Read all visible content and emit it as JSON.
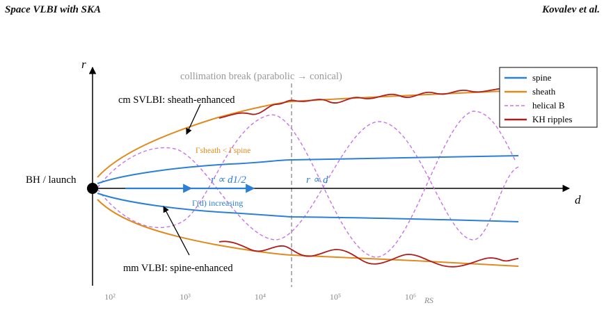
{
  "header": {
    "left": "Space VLBI with SKA",
    "right": "Kovalev et al."
  },
  "axes": {
    "x_label": "d",
    "y_label": "r"
  },
  "labels": {
    "launch": "BH / launch",
    "break": "collimation break (parabolic → conical)",
    "cm_svlbi": "cm SVLBI: sheath-enhanced",
    "mm_vlbi": "mm VLBI: spine-enhanced",
    "gamma_ineq": "Γsheath < Γspine",
    "gamma_d": "Γ(d) increasing",
    "r_parabolic": "r ∝ d1/2",
    "r_conical": "r ∝ d"
  },
  "ticks": [
    {
      "label": "10²",
      "d": 100
    },
    {
      "label": "10³",
      "d": 1000
    },
    {
      "label": "10⁴",
      "d": 10000
    },
    {
      "label": "10⁵",
      "d": 100000
    },
    {
      "label": "10⁶",
      "d": 1000000
    }
  ],
  "tick_unit": "RS",
  "legend": [
    {
      "label": "spine",
      "color": "#2a7fd6",
      "style": "solid"
    },
    {
      "label": "sheath",
      "color": "#e08a1e",
      "style": "solid"
    },
    {
      "label": "helical B",
      "color": "#c773e6",
      "style": "dashed"
    },
    {
      "label": "KH ripples",
      "color": "#b01c1c",
      "style": "solid"
    }
  ],
  "colors": {
    "spine": "#2a7fd6",
    "sheath": "#e08a1e",
    "helical": "#c773e6",
    "kh": "#b01c1c",
    "break_line": "#888888",
    "axis": "#000000"
  }
}
